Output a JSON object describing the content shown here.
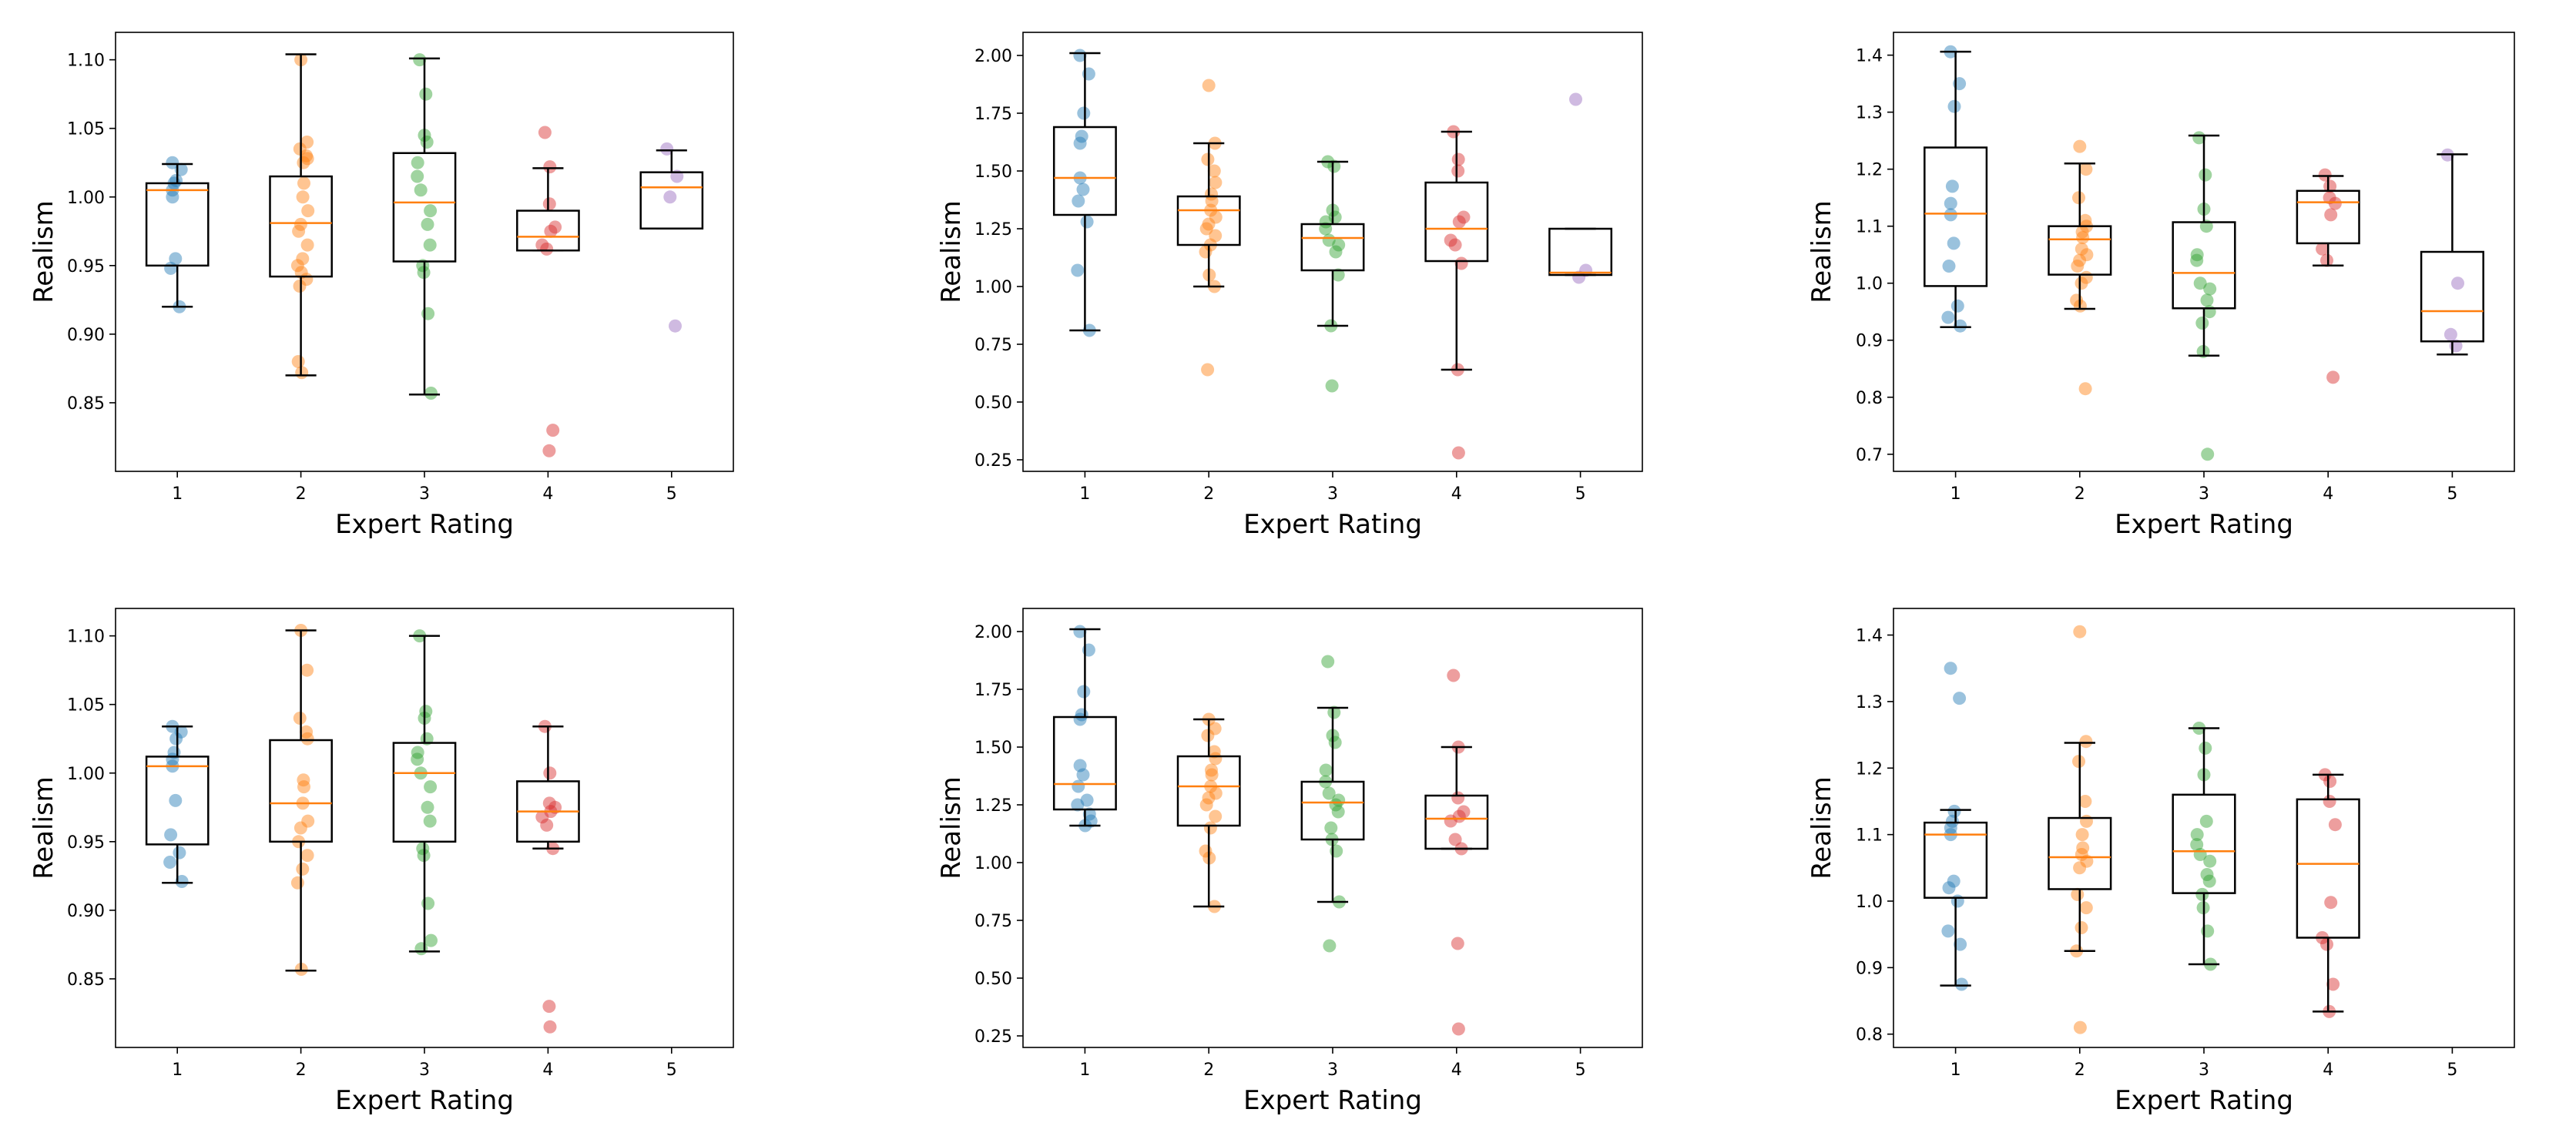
{
  "chart_data": [
    {
      "type": "box",
      "xlabel": "Expert Rating",
      "ylabel": "Realism",
      "ylim": [
        0.8,
        1.12
      ],
      "yticks": [
        0.85,
        0.9,
        0.95,
        1.0,
        1.05,
        1.1
      ],
      "ytick_labels": [
        "0.85",
        "0.90",
        "0.95",
        "1.00",
        "1.05",
        "1.10"
      ],
      "categories": [
        "1",
        "2",
        "3",
        "4",
        "5"
      ],
      "boxes": [
        {
          "category": "1",
          "q1": 0.95,
          "median": 1.005,
          "q3": 1.01,
          "whislo": 0.92,
          "whishi": 1.024
        },
        {
          "category": "2",
          "q1": 0.942,
          "median": 0.981,
          "q3": 1.015,
          "whislo": 0.87,
          "whishi": 1.104
        },
        {
          "category": "3",
          "q1": 0.953,
          "median": 0.996,
          "q3": 1.032,
          "whislo": 0.856,
          "whishi": 1.101
        },
        {
          "category": "4",
          "q1": 0.961,
          "median": 0.971,
          "q3": 0.99,
          "whislo": 0.961,
          "whishi": 1.021
        },
        {
          "category": "5",
          "q1": 0.977,
          "median": 1.007,
          "q3": 1.018,
          "whislo": 0.977,
          "whishi": 1.034
        }
      ],
      "points": [
        [
          1.025,
          1.02,
          1.012,
          1.01,
          1.005,
          1.0,
          0.955,
          0.948,
          0.92
        ],
        [
          1.1,
          1.04,
          1.035,
          1.03,
          1.028,
          1.025,
          1.01,
          1.0,
          0.99,
          0.98,
          0.975,
          0.965,
          0.955,
          0.95,
          0.945,
          0.94,
          0.935,
          0.88,
          0.872
        ],
        [
          1.1,
          1.075,
          1.045,
          1.04,
          1.025,
          1.015,
          1.005,
          0.99,
          0.98,
          0.965,
          0.95,
          0.945,
          0.915,
          0.857
        ],
        [
          1.047,
          1.022,
          0.995,
          0.978,
          0.975,
          0.965,
          0.962,
          0.83,
          0.815
        ],
        [
          1.035,
          1.015,
          1.0,
          0.906
        ]
      ]
    },
    {
      "type": "box",
      "xlabel": "Expert Rating",
      "ylabel": "Realism",
      "ylim": [
        0.2,
        2.1
      ],
      "yticks": [
        0.25,
        0.5,
        0.75,
        1.0,
        1.25,
        1.5,
        1.75,
        2.0
      ],
      "ytick_labels": [
        "0.25",
        "0.50",
        "0.75",
        "1.00",
        "1.25",
        "1.50",
        "1.75",
        "2.00"
      ],
      "categories": [
        "1",
        "2",
        "3",
        "4",
        "5"
      ],
      "boxes": [
        {
          "category": "1",
          "q1": 1.31,
          "median": 1.47,
          "q3": 1.69,
          "whislo": 0.81,
          "whishi": 2.01
        },
        {
          "category": "2",
          "q1": 1.18,
          "median": 1.33,
          "q3": 1.39,
          "whislo": 1.0,
          "whishi": 1.62
        },
        {
          "category": "3",
          "q1": 1.07,
          "median": 1.21,
          "q3": 1.27,
          "whislo": 0.83,
          "whishi": 1.54
        },
        {
          "category": "4",
          "q1": 1.11,
          "median": 1.25,
          "q3": 1.45,
          "whislo": 0.64,
          "whishi": 1.67
        },
        {
          "category": "5",
          "q1": 1.05,
          "median": 1.06,
          "q3": 1.25,
          "whislo": 1.05,
          "whishi": 1.25
        }
      ],
      "points": [
        [
          2.0,
          1.92,
          1.75,
          1.65,
          1.62,
          1.47,
          1.42,
          1.37,
          1.28,
          1.07,
          0.81
        ],
        [
          1.87,
          1.62,
          1.55,
          1.5,
          1.45,
          1.4,
          1.37,
          1.33,
          1.3,
          1.27,
          1.25,
          1.22,
          1.18,
          1.15,
          1.05,
          1.0,
          0.64
        ],
        [
          1.54,
          1.52,
          1.33,
          1.3,
          1.28,
          1.25,
          1.2,
          1.18,
          1.15,
          1.05,
          0.83,
          0.57
        ],
        [
          1.67,
          1.55,
          1.5,
          1.3,
          1.28,
          1.2,
          1.18,
          1.1,
          0.64,
          0.28
        ],
        [
          1.81,
          1.07,
          1.04
        ]
      ]
    },
    {
      "type": "box",
      "xlabel": "Expert Rating",
      "ylabel": "Realism",
      "ylim": [
        0.67,
        1.44
      ],
      "yticks": [
        0.7,
        0.8,
        0.9,
        1.0,
        1.1,
        1.2,
        1.3,
        1.4
      ],
      "ytick_labels": [
        "0.7",
        "0.8",
        "0.9",
        "1.0",
        "1.1",
        "1.2",
        "1.3",
        "1.4"
      ],
      "categories": [
        "1",
        "2",
        "3",
        "4",
        "5"
      ],
      "boxes": [
        {
          "category": "1",
          "q1": 0.995,
          "median": 1.122,
          "q3": 1.238,
          "whislo": 0.923,
          "whishi": 1.406
        },
        {
          "category": "2",
          "q1": 1.015,
          "median": 1.077,
          "q3": 1.1,
          "whislo": 0.955,
          "whishi": 1.21
        },
        {
          "category": "3",
          "q1": 0.956,
          "median": 1.018,
          "q3": 1.107,
          "whislo": 0.873,
          "whishi": 1.259
        },
        {
          "category": "4",
          "q1": 1.07,
          "median": 1.142,
          "q3": 1.162,
          "whislo": 1.031,
          "whishi": 1.188
        },
        {
          "category": "5",
          "q1": 0.898,
          "median": 0.951,
          "q3": 1.055,
          "whislo": 0.875,
          "whishi": 1.226
        }
      ],
      "points": [
        [
          1.406,
          1.35,
          1.31,
          1.17,
          1.14,
          1.12,
          1.07,
          1.03,
          0.96,
          0.94,
          0.925
        ],
        [
          1.24,
          1.2,
          1.15,
          1.11,
          1.1,
          1.09,
          1.08,
          1.06,
          1.05,
          1.04,
          1.03,
          1.01,
          1.0,
          0.97,
          0.96,
          0.815
        ],
        [
          1.255,
          1.19,
          1.13,
          1.1,
          1.05,
          1.04,
          1.0,
          0.99,
          0.97,
          0.95,
          0.93,
          0.88,
          0.7
        ],
        [
          1.19,
          1.17,
          1.15,
          1.14,
          1.12,
          1.06,
          1.04,
          0.835
        ],
        [
          1.225,
          1.0,
          0.91,
          0.89
        ]
      ]
    },
    {
      "type": "box",
      "xlabel": "Expert Rating",
      "ylabel": "Realism",
      "ylim": [
        0.8,
        1.12
      ],
      "yticks": [
        0.85,
        0.9,
        0.95,
        1.0,
        1.05,
        1.1
      ],
      "ytick_labels": [
        "0.85",
        "0.90",
        "0.95",
        "1.00",
        "1.05",
        "1.10"
      ],
      "categories": [
        "1",
        "2",
        "3",
        "4",
        "5"
      ],
      "boxes": [
        {
          "category": "1",
          "q1": 0.948,
          "median": 1.005,
          "q3": 1.012,
          "whislo": 0.92,
          "whishi": 1.034
        },
        {
          "category": "2",
          "q1": 0.95,
          "median": 0.978,
          "q3": 1.024,
          "whislo": 0.856,
          "whishi": 1.104
        },
        {
          "category": "3",
          "q1": 0.95,
          "median": 1.0,
          "q3": 1.022,
          "whislo": 0.87,
          "whishi": 1.1
        },
        {
          "category": "4",
          "q1": 0.95,
          "median": 0.972,
          "q3": 0.994,
          "whislo": 0.945,
          "whishi": 1.034
        }
      ],
      "points": [
        [
          1.034,
          1.03,
          1.025,
          1.015,
          1.01,
          1.005,
          0.98,
          0.955,
          0.942,
          0.935,
          0.921
        ],
        [
          1.104,
          1.075,
          1.04,
          1.03,
          1.025,
          0.995,
          0.99,
          0.978,
          0.965,
          0.96,
          0.95,
          0.94,
          0.93,
          0.92,
          0.857
        ],
        [
          1.1,
          1.045,
          1.04,
          1.025,
          1.015,
          1.01,
          1.0,
          0.99,
          0.975,
          0.965,
          0.945,
          0.94,
          0.905,
          0.878,
          0.872
        ],
        [
          1.034,
          1.0,
          0.978,
          0.975,
          0.972,
          0.968,
          0.962,
          0.945,
          0.83,
          0.815
        ]
      ]
    },
    {
      "type": "box",
      "xlabel": "Expert Rating",
      "ylabel": "Realism",
      "ylim": [
        0.2,
        2.1
      ],
      "yticks": [
        0.25,
        0.5,
        0.75,
        1.0,
        1.25,
        1.5,
        1.75,
        2.0
      ],
      "ytick_labels": [
        "0.25",
        "0.50",
        "0.75",
        "1.00",
        "1.25",
        "1.50",
        "1.75",
        "2.00"
      ],
      "categories": [
        "1",
        "2",
        "3",
        "4",
        "5"
      ],
      "boxes": [
        {
          "category": "1",
          "q1": 1.23,
          "median": 1.34,
          "q3": 1.63,
          "whislo": 1.16,
          "whishi": 2.01
        },
        {
          "category": "2",
          "q1": 1.16,
          "median": 1.33,
          "q3": 1.46,
          "whislo": 0.81,
          "whishi": 1.62
        },
        {
          "category": "3",
          "q1": 1.1,
          "median": 1.26,
          "q3": 1.35,
          "whislo": 0.83,
          "whishi": 1.67
        },
        {
          "category": "4",
          "q1": 1.06,
          "median": 1.19,
          "q3": 1.29,
          "whislo": 1.06,
          "whishi": 1.5
        }
      ],
      "points": [
        [
          2.0,
          1.92,
          1.74,
          1.64,
          1.62,
          1.42,
          1.38,
          1.33,
          1.27,
          1.25,
          1.21,
          1.18,
          1.16
        ],
        [
          1.62,
          1.58,
          1.55,
          1.48,
          1.45,
          1.4,
          1.38,
          1.33,
          1.3,
          1.28,
          1.25,
          1.2,
          1.15,
          1.05,
          1.02,
          0.81
        ],
        [
          1.87,
          1.65,
          1.55,
          1.52,
          1.4,
          1.35,
          1.3,
          1.27,
          1.25,
          1.22,
          1.15,
          1.1,
          1.05,
          0.83,
          0.64
        ],
        [
          1.81,
          1.5,
          1.28,
          1.22,
          1.2,
          1.18,
          1.1,
          1.06,
          0.65,
          0.28
        ]
      ]
    },
    {
      "type": "box",
      "xlabel": "Expert Rating",
      "ylabel": "Realism",
      "ylim": [
        0.78,
        1.44
      ],
      "yticks": [
        0.8,
        0.9,
        1.0,
        1.1,
        1.2,
        1.3,
        1.4
      ],
      "ytick_labels": [
        "0.8",
        "0.9",
        "1.0",
        "1.1",
        "1.2",
        "1.3",
        "1.4"
      ],
      "categories": [
        "1",
        "2",
        "3",
        "4",
        "5"
      ],
      "boxes": [
        {
          "category": "1",
          "q1": 1.005,
          "median": 1.1,
          "q3": 1.118,
          "whislo": 0.873,
          "whishi": 1.137
        },
        {
          "category": "2",
          "q1": 1.018,
          "median": 1.066,
          "q3": 1.125,
          "whislo": 0.925,
          "whishi": 1.238
        },
        {
          "category": "3",
          "q1": 1.012,
          "median": 1.075,
          "q3": 1.16,
          "whislo": 0.905,
          "whishi": 1.26
        },
        {
          "category": "4",
          "q1": 0.945,
          "median": 1.056,
          "q3": 1.153,
          "whislo": 0.834,
          "whishi": 1.19
        }
      ],
      "points": [
        [
          1.35,
          1.305,
          1.135,
          1.12,
          1.11,
          1.1,
          1.03,
          1.02,
          1.0,
          0.955,
          0.935,
          0.875
        ],
        [
          1.405,
          1.24,
          1.21,
          1.15,
          1.12,
          1.1,
          1.08,
          1.07,
          1.06,
          1.05,
          1.01,
          0.99,
          0.96,
          0.925,
          0.81
        ],
        [
          1.26,
          1.23,
          1.19,
          1.12,
          1.1,
          1.085,
          1.07,
          1.06,
          1.04,
          1.03,
          1.01,
          0.99,
          0.955,
          0.905
        ],
        [
          1.19,
          1.18,
          1.15,
          1.115,
          0.998,
          0.945,
          0.935,
          0.875,
          0.834
        ]
      ]
    }
  ],
  "colors": {
    "category_points": [
      "#1f77b4",
      "#ff7f0e",
      "#2ca02c",
      "#d62728",
      "#9467bd"
    ],
    "median": "#ff7f0e",
    "box": "#000000",
    "axes": "#000000",
    "background": "#ffffff"
  }
}
